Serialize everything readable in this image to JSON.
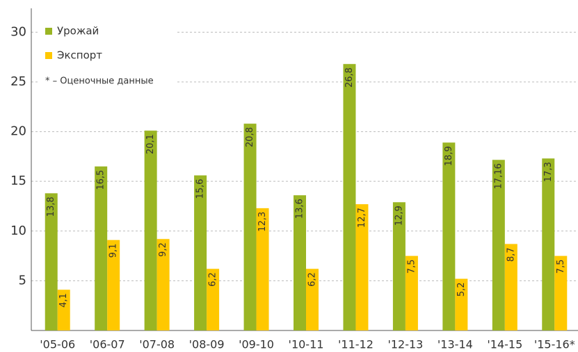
{
  "chart_data": {
    "type": "bar",
    "categories": [
      "'05-06",
      "'06-07",
      "'07-08",
      "'08-09",
      "'09-10",
      "'10-11",
      "'11-12",
      "'12-13",
      "'13-14",
      "'14-15",
      "'15-16*"
    ],
    "series": [
      {
        "name": "Урожай",
        "color": "#9ab523",
        "values": [
          13.8,
          16.5,
          20.1,
          15.6,
          20.8,
          13.6,
          26.8,
          12.9,
          18.9,
          17.16,
          17.3
        ],
        "value_labels": [
          "13,8",
          "16,5",
          "20,1",
          "15,6",
          "20,8",
          "13,6",
          "26,8",
          "12,9",
          "18,9",
          "17,16",
          "17,3"
        ]
      },
      {
        "name": "Экспорт",
        "color": "#ffc800",
        "values": [
          4.1,
          9.1,
          9.2,
          6.2,
          12.3,
          6.2,
          12.7,
          7.5,
          5.2,
          8.7,
          7.5
        ],
        "value_labels": [
          "4,1",
          "9,1",
          "9,2",
          "6,2",
          "12,3",
          "6,2",
          "12,7",
          "7,5",
          "5,2",
          "8,7",
          "7,5"
        ]
      }
    ],
    "annotation": "* – Оценочные данные",
    "ylim": [
      0,
      32.4
    ],
    "yticks": [
      5,
      10,
      15,
      20,
      25,
      30
    ],
    "grid": true,
    "legend": "upper left"
  }
}
